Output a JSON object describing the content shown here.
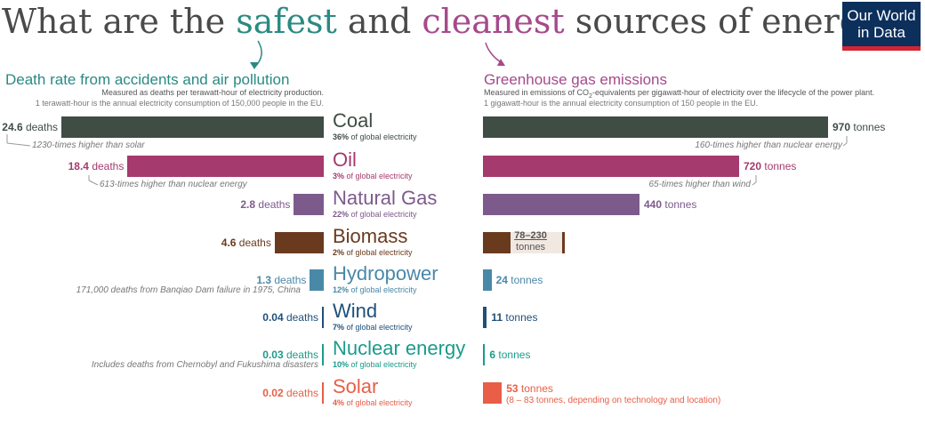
{
  "title": {
    "pre": "What are the ",
    "safest": "safest",
    "mid": " and ",
    "cleanest": "cleanest",
    "post": " sources of energy?"
  },
  "logo": {
    "line1": "Our World",
    "line2": "in Data"
  },
  "left_panel": {
    "title": "Death rate from accidents and air pollution",
    "subtitle1": "Measured as deaths per terawatt-hour of electricity production.",
    "subtitle2": "1 terawatt-hour is the annual electricity consumption of 150,000 people in the EU."
  },
  "right_panel": {
    "title": "Greenhouse gas emissions",
    "subtitle1_pre": "Measured in emissions of CO",
    "subtitle1_sub": "2",
    "subtitle1_post": "-equivalents per gigawatt-hour of electricity over the lifecycle of the power plant.",
    "subtitle2": "1 gigawatt-hour is the annual electricity consumption of 150 people in the EU."
  },
  "sources": [
    {
      "name": "Coal",
      "share": "36%",
      "share_suffix": " of global electricity",
      "deaths_value": "24.6",
      "deaths_unit": " deaths",
      "emissions_value": "970",
      "emissions_unit": " tonnes",
      "color": "#3f4d44",
      "death_note": "1230-times higher than solar",
      "emission_note": "160-times higher than nuclear energy"
    },
    {
      "name": "Oil",
      "share": "3%",
      "share_suffix": " of global electricity",
      "deaths_value": "18.4",
      "deaths_unit": " deaths",
      "emissions_value": "720",
      "emissions_unit": " tonnes",
      "color": "#a43a6d",
      "death_note": "613-times higher than nuclear energy",
      "emission_note": "65-times higher than wind"
    },
    {
      "name": "Natural Gas",
      "share": "22%",
      "share_suffix": " of global electricity",
      "deaths_value": "2.8",
      "deaths_unit": " deaths",
      "emissions_value": "440",
      "emissions_unit": " tonnes",
      "color": "#7d5a8c"
    },
    {
      "name": "Biomass",
      "share": "2%",
      "share_suffix": " of global electricity",
      "deaths_value": "4.6",
      "deaths_unit": " deaths",
      "emissions_range": "78–230",
      "emissions_range_unit": "tonnes",
      "color": "#6a3a1f"
    },
    {
      "name": "Hydropower",
      "share": "12%",
      "share_suffix": " of global electricity",
      "deaths_value": "1.3",
      "deaths_unit": " deaths",
      "emissions_value": "24",
      "emissions_unit": " tonnes",
      "color": "#4a88a8",
      "death_note": "171,000 deaths from Banqiao Dam failure in 1975, China"
    },
    {
      "name": "Wind",
      "share": "7%",
      "share_suffix": " of global electricity",
      "deaths_value": "0.04",
      "deaths_unit": " deaths",
      "emissions_value": "11",
      "emissions_unit": " tonnes",
      "color": "#1f4f7a"
    },
    {
      "name": "Nuclear energy",
      "share": "10%",
      "share_suffix": " of global electricity",
      "deaths_value": "0.03",
      "deaths_unit": " deaths",
      "emissions_value": "6",
      "emissions_unit": " tonnes",
      "color": "#1c9a8c",
      "death_note": "Includes deaths from Chernobyl and Fukushima disasters"
    },
    {
      "name": "Solar",
      "share": "4%",
      "share_suffix": " of global electricity",
      "deaths_value": "0.02",
      "deaths_unit": " deaths",
      "emissions_value": "53",
      "emissions_unit": " tonnes",
      "color": "#e85e46",
      "emission_note": "(8 – 83 tonnes, depending on technology and location)"
    }
  ],
  "chart_data": [
    {
      "type": "bar",
      "title": "Death rate from accidents and air pollution",
      "unit": "deaths per terawatt-hour",
      "categories": [
        "Coal",
        "Oil",
        "Natural Gas",
        "Biomass",
        "Hydropower",
        "Wind",
        "Nuclear energy",
        "Solar"
      ],
      "values": [
        24.6,
        18.4,
        2.8,
        4.6,
        1.3,
        0.04,
        0.03,
        0.02
      ],
      "orientation": "horizontal-left"
    },
    {
      "type": "bar",
      "title": "Greenhouse gas emissions",
      "unit": "tonnes CO2-eq per gigawatt-hour",
      "categories": [
        "Coal",
        "Oil",
        "Natural Gas",
        "Biomass",
        "Hydropower",
        "Wind",
        "Nuclear energy",
        "Solar"
      ],
      "values": [
        970,
        720,
        440,
        null,
        24,
        11,
        6,
        53
      ],
      "ranges": {
        "Biomass": [
          78,
          230
        ],
        "Solar": [
          8,
          83
        ]
      },
      "orientation": "horizontal-right"
    }
  ]
}
